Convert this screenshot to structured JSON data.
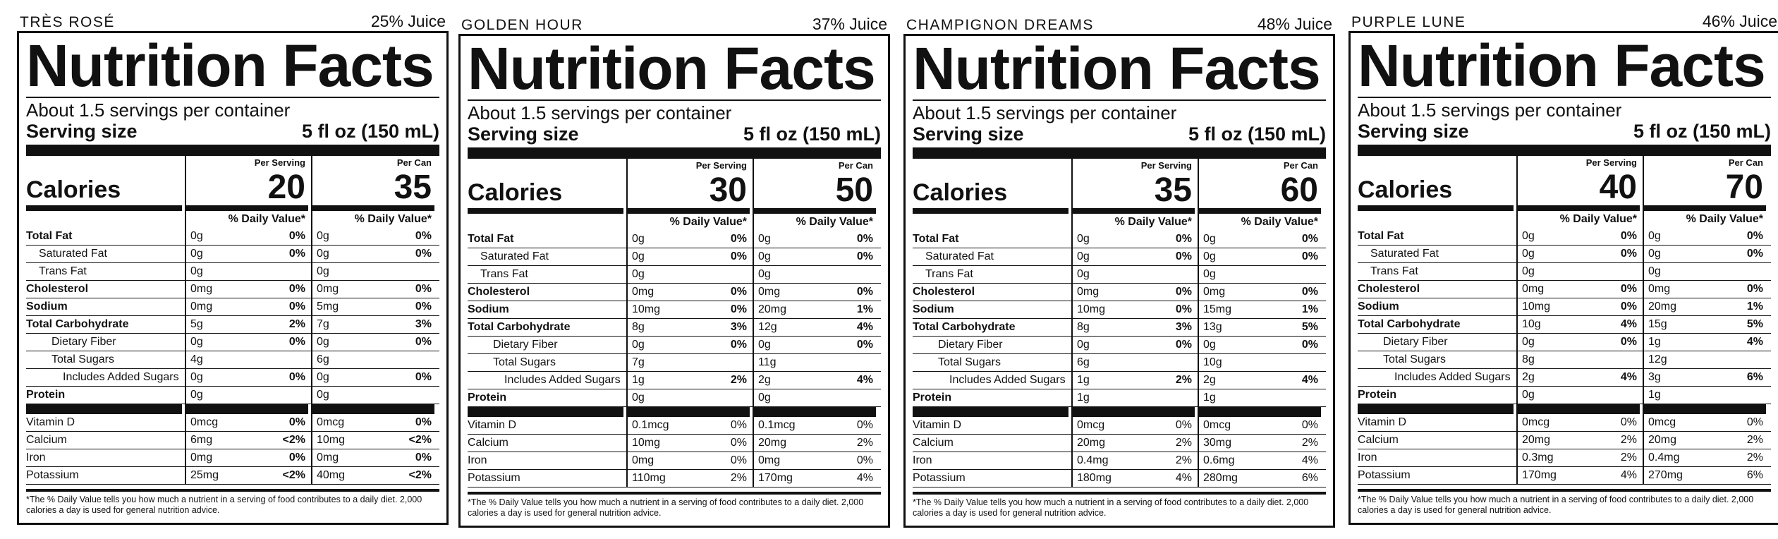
{
  "daily_value_header": "% Daily Value*",
  "calories_label": "Calories",
  "per_serving_label": "Per Serving",
  "per_can_label": "Per Can",
  "title": "Nutrition Facts",
  "servings_per_container": "About 1.5 servings per container",
  "serving_size_label": "Serving size",
  "serving_size_value": "5 fl oz (150 mL)",
  "footnote": "*The % Daily Value tells you how much a nutrient in a serving of food contributes to a daily diet. 2,000 calories a day is used for general nutrition advice.",
  "nutrient_labels": [
    "Total Fat",
    "Saturated Fat",
    "Trans Fat",
    "Cholesterol",
    "Sodium",
    "Total Carbohydrate",
    "Dietary Fiber",
    "Total Sugars",
    "Includes Added Sugars",
    "Protein"
  ],
  "vitamin_labels": [
    "Vitamin D",
    "Calcium",
    "Iron",
    "Potassium"
  ],
  "labels": [
    {
      "name": "TRÈS ROSÉ",
      "juice": "25% Juice",
      "cal_serving": "20",
      "cal_can": "35",
      "serving": [
        [
          "0g",
          "0%"
        ],
        [
          "0g",
          "0%"
        ],
        [
          "0g",
          ""
        ],
        [
          "0mg",
          "0%"
        ],
        [
          "0mg",
          "0%"
        ],
        [
          "5g",
          "2%"
        ],
        [
          "0g",
          "0%"
        ],
        [
          "4g",
          ""
        ],
        [
          "0g",
          "0%"
        ],
        [
          "0g",
          ""
        ]
      ],
      "can": [
        [
          "0g",
          "0%"
        ],
        [
          "0g",
          "0%"
        ],
        [
          "0g",
          ""
        ],
        [
          "0mg",
          "0%"
        ],
        [
          "5mg",
          "0%"
        ],
        [
          "7g",
          "3%"
        ],
        [
          "0g",
          "0%"
        ],
        [
          "6g",
          ""
        ],
        [
          "0g",
          "0%"
        ],
        [
          "0g",
          ""
        ]
      ],
      "vit_serving": [
        [
          "0mcg",
          "0%"
        ],
        [
          "6mg",
          "<2%"
        ],
        [
          "0mg",
          "0%"
        ],
        [
          "25mg",
          "<2%"
        ]
      ],
      "vit_can": [
        [
          "0mcg",
          "0%"
        ],
        [
          "10mg",
          "<2%"
        ],
        [
          "0mg",
          "0%"
        ],
        [
          "40mg",
          "<2%"
        ]
      ]
    },
    {
      "name": "GOLDEN HOUR",
      "juice": "37% Juice",
      "cal_serving": "30",
      "cal_can": "50",
      "serving": [
        [
          "0g",
          "0%"
        ],
        [
          "0g",
          "0%"
        ],
        [
          "0g",
          ""
        ],
        [
          "0mg",
          "0%"
        ],
        [
          "10mg",
          "0%"
        ],
        [
          "8g",
          "3%"
        ],
        [
          "0g",
          "0%"
        ],
        [
          "7g",
          ""
        ],
        [
          "1g",
          "2%"
        ],
        [
          "0g",
          ""
        ]
      ],
      "can": [
        [
          "0g",
          "0%"
        ],
        [
          "0g",
          "0%"
        ],
        [
          "0g",
          ""
        ],
        [
          "0mg",
          "0%"
        ],
        [
          "20mg",
          "1%"
        ],
        [
          "12g",
          "4%"
        ],
        [
          "0g",
          "0%"
        ],
        [
          "11g",
          ""
        ],
        [
          "2g",
          "4%"
        ],
        [
          "0g",
          ""
        ]
      ],
      "vit_serving": [
        [
          "0.1mcg",
          "0%"
        ],
        [
          "10mg",
          "0%"
        ],
        [
          "0mg",
          "0%"
        ],
        [
          "110mg",
          "2%"
        ]
      ],
      "vit_can": [
        [
          "0.1mcg",
          "0%"
        ],
        [
          "20mg",
          "2%"
        ],
        [
          "0mg",
          "0%"
        ],
        [
          "170mg",
          "4%"
        ]
      ]
    },
    {
      "name": "CHAMPIGNON DREAMS",
      "juice": "48% Juice",
      "cal_serving": "35",
      "cal_can": "60",
      "serving": [
        [
          "0g",
          "0%"
        ],
        [
          "0g",
          "0%"
        ],
        [
          "0g",
          ""
        ],
        [
          "0mg",
          "0%"
        ],
        [
          "10mg",
          "0%"
        ],
        [
          "8g",
          "3%"
        ],
        [
          "0g",
          "0%"
        ],
        [
          "6g",
          ""
        ],
        [
          "1g",
          "2%"
        ],
        [
          "1g",
          ""
        ]
      ],
      "can": [
        [
          "0g",
          "0%"
        ],
        [
          "0g",
          "0%"
        ],
        [
          "0g",
          ""
        ],
        [
          "0mg",
          "0%"
        ],
        [
          "15mg",
          "1%"
        ],
        [
          "13g",
          "5%"
        ],
        [
          "0g",
          "0%"
        ],
        [
          "10g",
          ""
        ],
        [
          "2g",
          "4%"
        ],
        [
          "1g",
          ""
        ]
      ],
      "vit_serving": [
        [
          "0mcg",
          "0%"
        ],
        [
          "20mg",
          "2%"
        ],
        [
          "0.4mg",
          "2%"
        ],
        [
          "180mg",
          "4%"
        ]
      ],
      "vit_can": [
        [
          "0mcg",
          "0%"
        ],
        [
          "30mg",
          "2%"
        ],
        [
          "0.6mg",
          "4%"
        ],
        [
          "280mg",
          "6%"
        ]
      ]
    },
    {
      "name": "PURPLE LUNE",
      "juice": "46% Juice",
      "cal_serving": "40",
      "cal_can": "70",
      "serving": [
        [
          "0g",
          "0%"
        ],
        [
          "0g",
          "0%"
        ],
        [
          "0g",
          ""
        ],
        [
          "0mg",
          "0%"
        ],
        [
          "10mg",
          "0%"
        ],
        [
          "10g",
          "4%"
        ],
        [
          "0g",
          "0%"
        ],
        [
          "8g",
          ""
        ],
        [
          "2g",
          "4%"
        ],
        [
          "0g",
          ""
        ]
      ],
      "can": [
        [
          "0g",
          "0%"
        ],
        [
          "0g",
          "0%"
        ],
        [
          "0g",
          ""
        ],
        [
          "0mg",
          "0%"
        ],
        [
          "20mg",
          "1%"
        ],
        [
          "15g",
          "5%"
        ],
        [
          "1g",
          "4%"
        ],
        [
          "12g",
          ""
        ],
        [
          "3g",
          "6%"
        ],
        [
          "1g",
          ""
        ]
      ],
      "vit_serving": [
        [
          "0mcg",
          "0%"
        ],
        [
          "20mg",
          "2%"
        ],
        [
          "0.3mg",
          "2%"
        ],
        [
          "170mg",
          "4%"
        ]
      ],
      "vit_can": [
        [
          "0mcg",
          "0%"
        ],
        [
          "20mg",
          "2%"
        ],
        [
          "0.4mg",
          "2%"
        ],
        [
          "270mg",
          "6%"
        ]
      ]
    }
  ]
}
